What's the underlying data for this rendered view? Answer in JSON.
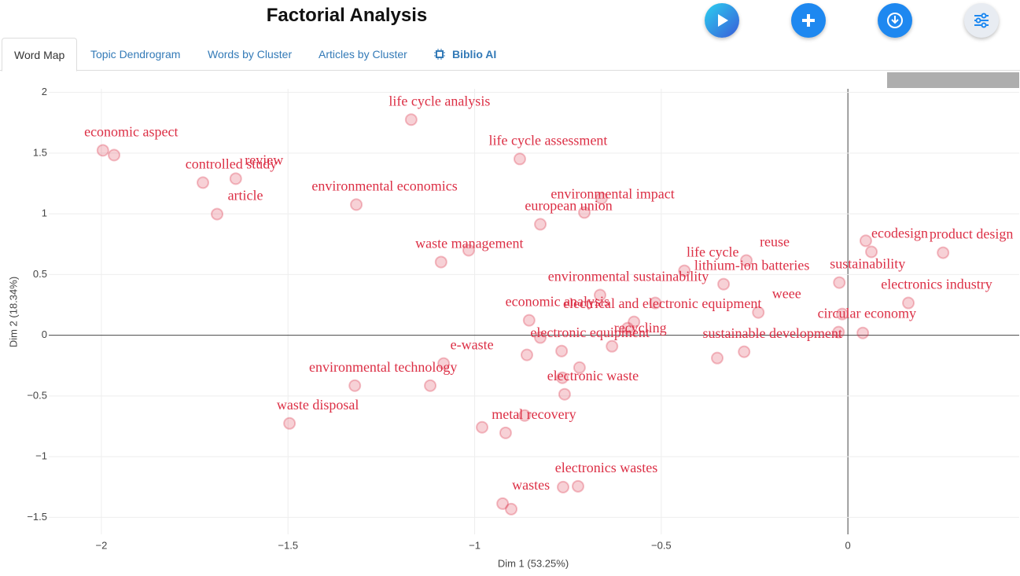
{
  "header": {
    "title": "Factorial Analysis"
  },
  "tabs": [
    "Word Map",
    "Topic Dendrogram",
    "Words by Cluster",
    "Articles by Cluster",
    "Biblio AI"
  ],
  "chart_data": {
    "type": "scatter",
    "xlabel": "Dim 1 (53.25%)",
    "ylabel": "Dim 2 (18.34%)",
    "xlim": [
      -2.141,
      0.459
    ],
    "ylim": [
      -1.64,
      2.03
    ],
    "xticks": [
      {
        "value": -2,
        "label": "−2"
      },
      {
        "value": -1.5,
        "label": "−1.5"
      },
      {
        "value": -1,
        "label": "−1"
      },
      {
        "value": -0.5,
        "label": "−0.5"
      },
      0
    ],
    "yticks": [
      {
        "value": -1.5,
        "label": "−1.5"
      },
      {
        "value": -1,
        "label": "−1"
      },
      {
        "value": -0.5,
        "label": "−0.5"
      },
      0,
      0.5,
      1,
      1.5,
      2
    ],
    "grid": true,
    "color": "#dc2f45",
    "x": [
      -1.996,
      -1.966,
      -1.728,
      -1.64,
      -1.69,
      -1.17,
      -0.879,
      -1.317,
      -0.66,
      -0.706,
      -0.824,
      -1.016,
      -1.09,
      -0.438,
      -0.272,
      -0.333,
      0.048,
      0.063,
      0.255,
      -0.023,
      0.162,
      -0.664,
      -0.516,
      -0.854,
      -0.24,
      -0.015,
      -0.573,
      -0.59,
      -0.824,
      -0.025,
      0.04,
      -0.632,
      -0.767,
      -0.86,
      -1.083,
      -0.278,
      -0.35,
      -0.719,
      -0.765,
      -1.321,
      -1.119,
      -0.759,
      -1.496,
      -0.866,
      -0.98,
      -0.917,
      -0.763,
      -0.723,
      -0.925,
      -0.902
    ],
    "y": [
      1.523,
      1.484,
      1.257,
      1.29,
      0.998,
      1.776,
      1.452,
      1.076,
      1.128,
      1.011,
      0.914,
      0.7,
      0.603,
      0.531,
      0.616,
      0.421,
      0.778,
      0.687,
      0.68,
      0.434,
      0.266,
      0.331,
      0.266,
      0.123,
      0.188,
      0.175,
      0.11,
      0.058,
      -0.019,
      0.026,
      0.019,
      -0.091,
      -0.13,
      -0.162,
      -0.233,
      -0.136,
      -0.188,
      -0.266,
      -0.35,
      -0.415,
      -0.415,
      -0.486,
      -0.726,
      -0.661,
      -0.758,
      -0.804,
      -1.251,
      -1.244,
      -1.387,
      -1.432
    ],
    "labels": [
      "economic aspect",
      null,
      "controlled study",
      "review",
      "article",
      "life cycle analysis",
      "life cycle assessment",
      "environmental economics",
      null,
      "environmental impact",
      "european union",
      null,
      "waste management",
      "life cycle",
      "reuse",
      "lithium-ion batteries",
      null,
      "ecodesign",
      "product design",
      "sustainability",
      "electronics industry",
      "environmental sustainability",
      null,
      "economic analysis",
      "weee",
      null,
      "electrical and electronic equipment",
      null,
      null,
      "circular economy",
      null,
      "recycling",
      "electronic equipment",
      null,
      "e-waste",
      "sustainable development",
      null,
      null,
      null,
      "environmental technology",
      null,
      "electronic waste",
      "waste disposal",
      null,
      null,
      "metal recovery",
      null,
      "electronics wastes",
      "wastes",
      null
    ]
  }
}
